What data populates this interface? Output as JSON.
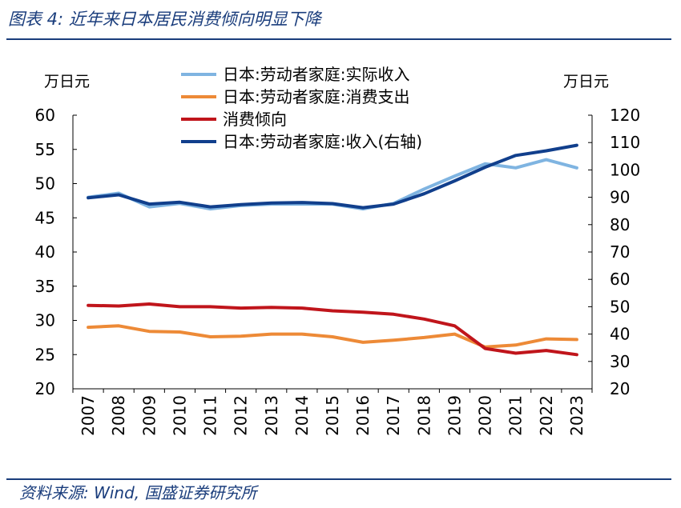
{
  "figure_title": "图表 4:  近年来日本居民消费倾向明显下降",
  "source_text": "资料来源:  Wind,  国盛证券研究所",
  "chart_data": {
    "type": "line",
    "left_unit": "万日元",
    "right_unit": "万日元",
    "x": [
      "2007",
      "2008",
      "2009",
      "2010",
      "2011",
      "2012",
      "2013",
      "2014",
      "2015",
      "2016",
      "2017",
      "2018",
      "2019",
      "2020",
      "2021",
      "2022",
      "2023"
    ],
    "left_ylim": [
      20,
      60
    ],
    "left_ticks": [
      "60",
      "55",
      "50",
      "45",
      "40",
      "35",
      "30",
      "25",
      "20"
    ],
    "right_ylim": [
      20,
      120
    ],
    "right_ticks": [
      "120",
      "110",
      "100",
      "90",
      "80",
      "70",
      "60",
      "50",
      "40",
      "30",
      "20"
    ],
    "legend_position": "top-center",
    "series": [
      {
        "name": "日本:劳动者家庭:实际收入",
        "color": "#7fb4e1",
        "axis": "left",
        "values": [
          48.0,
          48.6,
          46.6,
          47.1,
          46.3,
          46.8,
          47.0,
          47.0,
          47.0,
          46.3,
          47.1,
          49.2,
          51.1,
          52.9,
          52.3,
          53.5,
          52.3
        ]
      },
      {
        "name": "日本:劳动者家庭:消费支出",
        "color": "#ed8a37",
        "axis": "left",
        "values": [
          29.0,
          29.2,
          28.4,
          28.3,
          27.6,
          27.7,
          28.0,
          28.0,
          27.6,
          26.8,
          27.1,
          27.5,
          28.0,
          26.1,
          26.4,
          27.3,
          27.2
        ]
      },
      {
        "name": "消费倾向",
        "color": "#c0151b",
        "axis": "left",
        "values": [
          32.2,
          32.1,
          32.4,
          32.0,
          32.0,
          31.8,
          31.9,
          31.8,
          31.4,
          31.2,
          30.9,
          30.2,
          29.2,
          25.9,
          25.2,
          25.6,
          25.0
        ]
      },
      {
        "name": "日本:劳动者家庭:收入(右轴)",
        "color": "#113f8c",
        "axis": "right",
        "values": [
          89.8,
          90.9,
          87.5,
          88.2,
          86.5,
          87.3,
          87.9,
          88.1,
          87.7,
          86.2,
          87.5,
          91.3,
          96.0,
          101.0,
          105.3,
          107.0,
          109.0
        ]
      }
    ]
  }
}
